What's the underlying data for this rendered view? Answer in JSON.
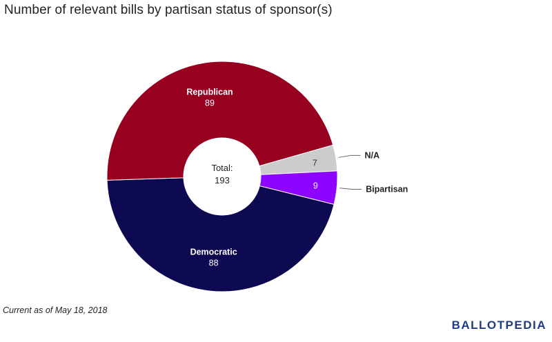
{
  "title": "Number of relevant bills by partisan status of sponsor(s)",
  "footnote": "Current as of May 18, 2018",
  "logo": "BALLOTPEDIA",
  "chart_data": {
    "type": "pie",
    "title": "Number of relevant bills by partisan status of sponsor(s)",
    "donut": true,
    "center_label": "Total:",
    "center_value": "193",
    "slices": [
      {
        "name": "Democratic",
        "value": 88,
        "color": "#0d0a52",
        "label_color": "#ffffff"
      },
      {
        "name": "Republican",
        "value": 89,
        "color": "#97001f",
        "label_color": "#ffffff"
      },
      {
        "name": "N/A",
        "value": 7,
        "color": "#cccccc",
        "label_color": "#333333"
      },
      {
        "name": "Bipartisan",
        "value": 9,
        "color": "#8e05ff",
        "label_color": "#ffffff"
      }
    ],
    "legend": "none"
  }
}
